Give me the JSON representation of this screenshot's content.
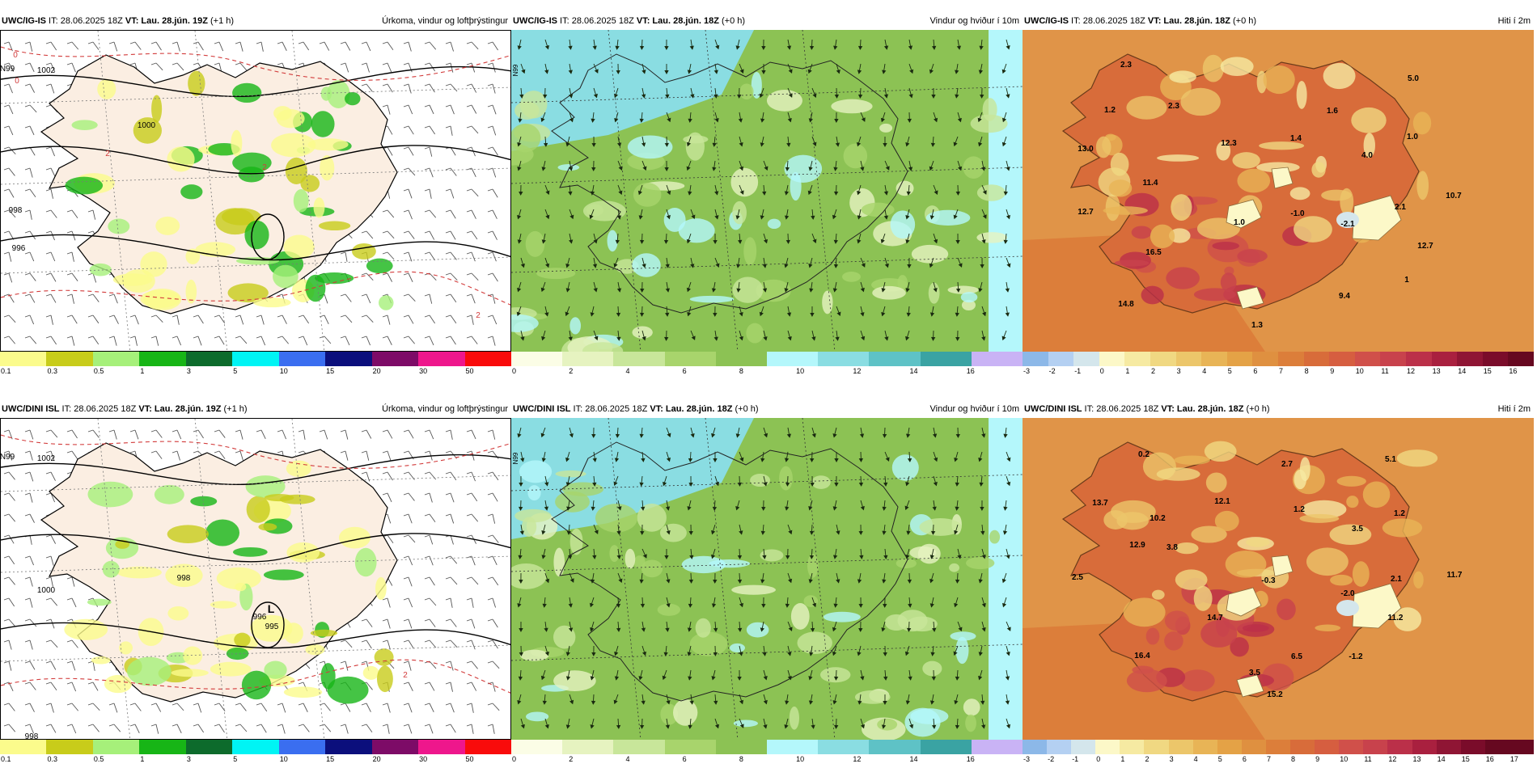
{
  "rows": [
    {
      "model": "UWC/IG-IS",
      "panels": [
        {
          "kind": "precip",
          "it_label": "IT:",
          "issue": "28.06.2025 18Z",
          "vt_label": "VT:",
          "valid": "Lau. 28.jún. 19Z",
          "lead": "(+1 h)",
          "title": "Úrkoma, vindur og loftþrýstingur",
          "map_labels": [
            "1002",
            "1000",
            "998",
            "996",
            "2",
            "0",
            "0",
            "2",
            "2",
            "N99"
          ]
        },
        {
          "kind": "wind",
          "it_label": "IT:",
          "issue": "28.06.2025 18Z",
          "vt_label": "VT:",
          "valid": "Lau. 28.jún. 18Z",
          "lead": "(+0 h)",
          "title": "Vindur og hviður í 10m",
          "map_labels": [
            "N99"
          ]
        },
        {
          "kind": "temp",
          "it_label": "IT:",
          "issue": "28.06.2025 18Z",
          "vt_label": "VT:",
          "valid": "Lau. 28.jún. 18Z",
          "lead": "(+0 h)",
          "title": "Hiti í 2m",
          "map_labels": [
            "2.3",
            "2.3",
            "1.2",
            "1.6",
            "5.0",
            "13.0",
            "12.3",
            "1.4",
            "4.0",
            "1.0",
            "11.4",
            "10.7",
            "12.7",
            "1.0",
            "-1.0",
            "-2.1",
            "2.1",
            "16.5",
            "12.7",
            "14.8",
            "9.4",
            "1",
            "1.3"
          ]
        }
      ]
    },
    {
      "model": "UWC/DINI ISL",
      "panels": [
        {
          "kind": "precip",
          "it_label": "IT:",
          "issue": "28.06.2025 18Z",
          "vt_label": "VT:",
          "valid": "Lau. 28.jún. 19Z",
          "lead": "(+1 h)",
          "title": "Úrkoma, vindur og loftþrýstingur",
          "map_labels": [
            "1002",
            "1000",
            "998",
            "998",
            "996",
            "L",
            "995",
            "2",
            "N99"
          ]
        },
        {
          "kind": "wind",
          "it_label": "IT:",
          "issue": "28.06.2025 18Z",
          "vt_label": "VT:",
          "valid": "Lau. 28.jún. 18Z",
          "lead": "(+0 h)",
          "title": "Vindur og hviður í 10m",
          "map_labels": [
            "N99"
          ]
        },
        {
          "kind": "temp",
          "it_label": "IT:",
          "issue": "28.06.2025 18Z",
          "vt_label": "VT:",
          "valid": "Lau. 28.jún. 18Z",
          "lead": "(+0 h)",
          "title": "Hiti í 2m",
          "map_labels": [
            "0.2",
            "2.7",
            "5.1",
            "13.7",
            "12.1",
            "1.2",
            "1.2",
            "10.2",
            "3.5",
            "12.9",
            "3.8",
            "2.5",
            "-0.3",
            "-2.0",
            "2.1",
            "11.7",
            "14.7",
            "11.2",
            "16.4",
            "6.5",
            "-1.2",
            "3.5",
            "15.2"
          ]
        }
      ]
    }
  ],
  "colorbars": {
    "precip": {
      "colors": [
        "#fbfb8c",
        "#c8cc1a",
        "#a6f07a",
        "#17b516",
        "#0d6b2c",
        "#00f4f4",
        "#3a6ef0",
        "#0b0f7c",
        "#7d0b67",
        "#ee178c",
        "#f90b0b"
      ],
      "ticks": [
        "0.1",
        "0.3",
        "0.5",
        "1",
        "3",
        "5",
        "10",
        "15",
        "20",
        "30",
        "50"
      ]
    },
    "wind": {
      "colors": [
        "#fbfde6",
        "#e6f3c0",
        "#c8e69a",
        "#a8d46c",
        "#8cc254",
        "#b4f7fb",
        "#8adde2",
        "#5ec2c6",
        "#3aa3a3",
        "#c9b3f5"
      ],
      "ticks": [
        "0",
        "2",
        "4",
        "6",
        "8",
        "10",
        "12",
        "14",
        "16"
      ]
    },
    "temp": {
      "colors": [
        "#8cb8e8",
        "#b4d0f2",
        "#d4e6ec",
        "#fcf8c8",
        "#f6eaa2",
        "#f0d882",
        "#ecc66a",
        "#e8b456",
        "#e4a246",
        "#df9040",
        "#dc7e3a",
        "#d86c3a",
        "#d65e40",
        "#d0504a",
        "#c8424c",
        "#bb3049",
        "#a9203f",
        "#8f1534",
        "#7a0c2a",
        "#660820"
      ],
      "ticks_top": [
        "-3",
        "-2",
        "-1",
        "0",
        "1",
        "2",
        "3",
        "4",
        "5",
        "6",
        "7",
        "8",
        "9",
        "10",
        "11",
        "12",
        "13",
        "14",
        "15",
        "16"
      ],
      "ticks_bottom": [
        "-3",
        "-2",
        "-1",
        "0",
        "1",
        "2",
        "3",
        "4",
        "5",
        "6",
        "7",
        "8",
        "9",
        "10",
        "11",
        "12",
        "13",
        "14",
        "15",
        "16",
        "17"
      ]
    }
  }
}
